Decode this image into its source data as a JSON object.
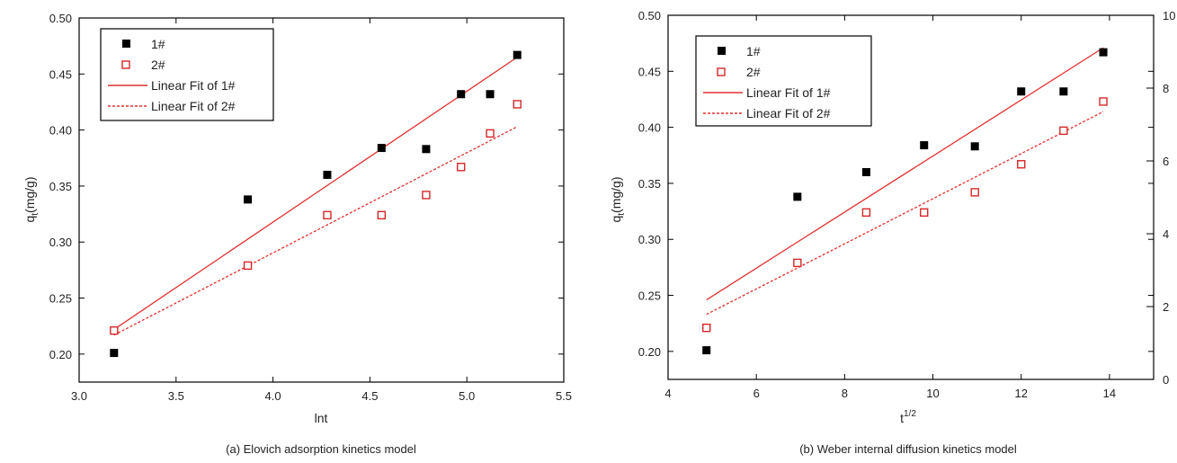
{
  "chart_data": [
    {
      "type": "scatter",
      "xlabel": "lnt",
      "ylabel_main": "q",
      "ylabel_sub": "t",
      "ylabel_tail": "(mg/g)",
      "xlim": [
        3.0,
        5.5
      ],
      "ylim": [
        0.175,
        0.5
      ],
      "x_ticks": [
        "3.0",
        "3.5",
        "4.0",
        "4.5",
        "5.0",
        "5.5"
      ],
      "y_ticks": [
        "0.20",
        "0.25",
        "0.30",
        "0.35",
        "0.40",
        "0.45",
        "0.50"
      ],
      "caption": "(a) Elovich adsorption kinetics model",
      "series": [
        {
          "name": "1#",
          "marker": "filled-square",
          "color": "#000000",
          "x": [
            3.18,
            3.87,
            4.28,
            4.56,
            4.79,
            4.97,
            5.12,
            5.26
          ],
          "y": [
            0.201,
            0.338,
            0.36,
            0.384,
            0.383,
            0.432,
            0.432,
            0.467
          ]
        },
        {
          "name": "2#",
          "marker": "open-square",
          "color": "#d62728",
          "x": [
            3.18,
            3.87,
            4.28,
            4.56,
            4.79,
            4.97,
            5.12,
            5.26
          ],
          "y": [
            0.221,
            0.279,
            0.324,
            0.324,
            0.342,
            0.367,
            0.397,
            0.423
          ]
        }
      ],
      "fits": [
        {
          "name": "Linear Fit of 1#",
          "style": "solid",
          "color": "#e03030",
          "x": [
            3.18,
            5.26
          ],
          "y": [
            0.222,
            0.465
          ]
        },
        {
          "name": "Linear Fit of 2#",
          "style": "dotted",
          "color": "#e03030",
          "x": [
            3.18,
            5.26
          ],
          "y": [
            0.217,
            0.403
          ]
        }
      ],
      "legend": {
        "position": "top-left",
        "entries": [
          "1#",
          "2#",
          "Linear Fit of 1#",
          "Linear Fit of 2#"
        ]
      }
    },
    {
      "type": "scatter",
      "xlabel_main": "t",
      "xlabel_sup": "1/2",
      "ylabel_main": "q",
      "ylabel_sub": "t",
      "ylabel_tail": "(mg/g)",
      "xlim": [
        4,
        15
      ],
      "ylim": [
        0.175,
        0.5
      ],
      "x_ticks": [
        "4",
        "6",
        "8",
        "10",
        "12",
        "14"
      ],
      "y_ticks": [
        "0.20",
        "0.25",
        "0.30",
        "0.35",
        "0.40",
        "0.45",
        "0.50"
      ],
      "right_ticks": [
        "0",
        "2",
        "4",
        "6",
        "8",
        "10"
      ],
      "caption": "(b) Weber internal diffusion kinetics model",
      "series": [
        {
          "name": "1#",
          "marker": "filled-square",
          "color": "#000000",
          "x": [
            4.87,
            6.93,
            8.49,
            9.8,
            10.95,
            12.0,
            12.96,
            13.86
          ],
          "y": [
            0.201,
            0.338,
            0.36,
            0.384,
            0.383,
            0.432,
            0.432,
            0.467
          ]
        },
        {
          "name": "2#",
          "marker": "open-square",
          "color": "#d62728",
          "x": [
            4.87,
            6.93,
            8.49,
            9.8,
            10.95,
            12.0,
            12.96,
            13.86
          ],
          "y": [
            0.221,
            0.279,
            0.324,
            0.324,
            0.342,
            0.367,
            0.397,
            0.423
          ]
        }
      ],
      "fits": [
        {
          "name": "Linear Fit of 1#",
          "style": "solid",
          "color": "#e03030",
          "x": [
            4.87,
            13.86
          ],
          "y": [
            0.246,
            0.471
          ]
        },
        {
          "name": "Linear Fit of 2#",
          "style": "dotted",
          "color": "#e03030",
          "x": [
            4.87,
            13.86
          ],
          "y": [
            0.233,
            0.414
          ]
        }
      ],
      "legend": {
        "position": "top-left",
        "entries": [
          "1#",
          "2#",
          "Linear Fit of 1#",
          "Linear Fit of 2#"
        ]
      }
    }
  ]
}
